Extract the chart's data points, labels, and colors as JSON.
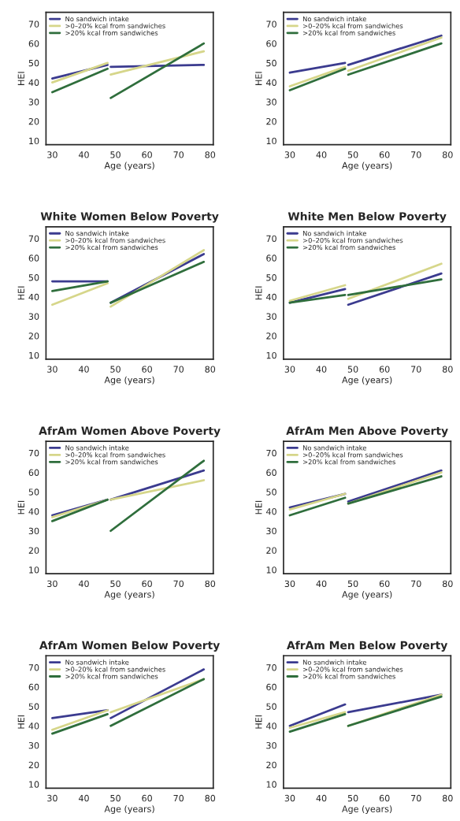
{
  "chart_data": [
    {
      "type": "line",
      "xlabel": "Age (years)",
      "ylabel": "HEI",
      "x": [
        30,
        47.5,
        48,
        48.5,
        78
      ],
      "xlim": [
        28,
        81
      ],
      "ylim": [
        8,
        76
      ],
      "xticks": [
        30,
        40,
        50,
        60,
        70,
        80
      ],
      "yticks": [
        10,
        20,
        30,
        40,
        50,
        60,
        70
      ],
      "legend": "top left",
      "series": [
        {
          "name": "No sandwich intake",
          "color": "#3b3b8f",
          "values": [
            42,
            49,
            null,
            48,
            49
          ]
        },
        {
          "name": ">0–20% kcal from sandwiches",
          "color": "#d6d68a",
          "values": [
            40,
            50,
            null,
            44,
            56
          ]
        },
        {
          "name": ">20% kcal from sandwiches",
          "color": "#2f6e3c",
          "values": [
            35,
            47,
            null,
            32,
            60
          ]
        }
      ]
    },
    {
      "type": "line",
      "xlabel": "Age (years)",
      "ylabel": "HEI",
      "x": [
        30,
        47.5,
        48,
        48.5,
        78
      ],
      "xlim": [
        28,
        81
      ],
      "ylim": [
        8,
        76
      ],
      "xticks": [
        30,
        40,
        50,
        60,
        70,
        80
      ],
      "yticks": [
        10,
        20,
        30,
        40,
        50,
        60,
        70
      ],
      "legend": "top left",
      "series": [
        {
          "name": "No sandwich intake",
          "color": "#3b3b8f",
          "values": [
            45,
            50,
            null,
            49,
            64
          ]
        },
        {
          "name": ">0–20% kcal from sandwiches",
          "color": "#d6d68a",
          "values": [
            38,
            48,
            null,
            46,
            63
          ]
        },
        {
          "name": ">20% kcal from sandwiches",
          "color": "#2f6e3c",
          "values": [
            36,
            47,
            null,
            44,
            60
          ]
        }
      ]
    },
    {
      "type": "line",
      "title": "White Women Below Poverty",
      "xlabel": "Age (years)",
      "ylabel": "HEI",
      "x": [
        30,
        47.5,
        48,
        48.5,
        78
      ],
      "xlim": [
        28,
        81
      ],
      "ylim": [
        8,
        76
      ],
      "xticks": [
        30,
        40,
        50,
        60,
        70,
        80
      ],
      "yticks": [
        10,
        20,
        30,
        40,
        50,
        60,
        70
      ],
      "legend": "top left",
      "series": [
        {
          "name": "No sandwich intake",
          "color": "#3b3b8f",
          "values": [
            48,
            48,
            null,
            37,
            62
          ]
        },
        {
          "name": ">0–20% kcal from sandwiches",
          "color": "#d6d68a",
          "values": [
            36,
            47,
            null,
            35,
            64
          ]
        },
        {
          "name": ">20% kcal from sandwiches",
          "color": "#2f6e3c",
          "values": [
            43,
            48,
            null,
            37,
            58
          ]
        }
      ]
    },
    {
      "type": "line",
      "title": "White Men Below Poverty",
      "xlabel": "Age (years)",
      "ylabel": "HEI",
      "x": [
        30,
        47.5,
        48,
        48.5,
        78
      ],
      "xlim": [
        28,
        81
      ],
      "ylim": [
        8,
        76
      ],
      "xticks": [
        30,
        40,
        50,
        60,
        70,
        80
      ],
      "yticks": [
        10,
        20,
        30,
        40,
        50,
        60,
        70
      ],
      "legend": "top left",
      "series": [
        {
          "name": "No sandwich intake",
          "color": "#3b3b8f",
          "values": [
            37,
            44,
            null,
            36,
            52
          ]
        },
        {
          "name": ">0–20% kcal from sandwiches",
          "color": "#d6d68a",
          "values": [
            38,
            46,
            null,
            39,
            57
          ]
        },
        {
          "name": ">20% kcal from sandwiches",
          "color": "#2f6e3c",
          "values": [
            37,
            41,
            null,
            41,
            49
          ]
        }
      ]
    },
    {
      "type": "line",
      "title": "AfrAm Women Above Poverty",
      "xlabel": "Age (years)",
      "ylabel": "HEI",
      "x": [
        30,
        47.5,
        48,
        48.5,
        78
      ],
      "xlim": [
        28,
        81
      ],
      "ylim": [
        8,
        76
      ],
      "xticks": [
        30,
        40,
        50,
        60,
        70,
        80
      ],
      "yticks": [
        10,
        20,
        30,
        40,
        50,
        60,
        70
      ],
      "legend": "top left",
      "series": [
        {
          "name": "No sandwich intake",
          "color": "#3b3b8f",
          "values": [
            38,
            46,
            null,
            46,
            61
          ]
        },
        {
          "name": ">0–20% kcal from sandwiches",
          "color": "#d6d68a",
          "values": [
            37,
            46,
            null,
            46,
            56
          ]
        },
        {
          "name": ">20% kcal from sandwiches",
          "color": "#2f6e3c",
          "values": [
            35,
            46,
            null,
            30,
            66
          ]
        }
      ]
    },
    {
      "type": "line",
      "title": "AfrAm Men Above Poverty",
      "xlabel": "Age (years)",
      "ylabel": "HEI",
      "x": [
        30,
        47.5,
        48,
        48.5,
        78
      ],
      "xlim": [
        28,
        81
      ],
      "ylim": [
        8,
        76
      ],
      "xticks": [
        30,
        40,
        50,
        60,
        70,
        80
      ],
      "yticks": [
        10,
        20,
        30,
        40,
        50,
        60,
        70
      ],
      "legend": "top left",
      "series": [
        {
          "name": "No sandwich intake",
          "color": "#3b3b8f",
          "values": [
            42,
            49,
            null,
            45,
            61
          ]
        },
        {
          "name": ">0–20% kcal from sandwiches",
          "color": "#d6d68a",
          "values": [
            41,
            49,
            null,
            44,
            60
          ]
        },
        {
          "name": ">20% kcal from sandwiches",
          "color": "#2f6e3c",
          "values": [
            38,
            47,
            null,
            44,
            58
          ]
        }
      ]
    },
    {
      "type": "line",
      "title": "AfrAm Women Below Poverty",
      "xlabel": "Age (years)",
      "ylabel": "HEI",
      "x": [
        30,
        47.5,
        48,
        48.5,
        78
      ],
      "xlim": [
        28,
        81
      ],
      "ylim": [
        8,
        76
      ],
      "xticks": [
        30,
        40,
        50,
        60,
        70,
        80
      ],
      "yticks": [
        10,
        20,
        30,
        40,
        50,
        60,
        70
      ],
      "legend": "top left",
      "series": [
        {
          "name": "No sandwich intake",
          "color": "#3b3b8f",
          "values": [
            44,
            48,
            null,
            44,
            69
          ]
        },
        {
          "name": ">0–20% kcal from sandwiches",
          "color": "#d6d68a",
          "values": [
            38,
            48,
            null,
            47,
            64
          ]
        },
        {
          "name": ">20% kcal from sandwiches",
          "color": "#2f6e3c",
          "values": [
            36,
            46,
            null,
            40,
            64
          ]
        }
      ]
    },
    {
      "type": "line",
      "title": "AfrAm Men Below Poverty",
      "xlabel": "Age (years)",
      "ylabel": "HEI",
      "x": [
        30,
        47.5,
        48,
        48.5,
        78
      ],
      "xlim": [
        28,
        81
      ],
      "ylim": [
        8,
        76
      ],
      "xticks": [
        30,
        40,
        50,
        60,
        70,
        80
      ],
      "yticks": [
        10,
        20,
        30,
        40,
        50,
        60,
        70
      ],
      "legend": "top left",
      "series": [
        {
          "name": "No sandwich intake",
          "color": "#3b3b8f",
          "values": [
            40,
            51,
            null,
            47,
            56
          ]
        },
        {
          "name": ">0–20% kcal from sandwiches",
          "color": "#d6d68a",
          "values": [
            39,
            47,
            null,
            40,
            56
          ]
        },
        {
          "name": ">20% kcal from sandwiches",
          "color": "#2f6e3c",
          "values": [
            37,
            46,
            null,
            40,
            55
          ]
        }
      ]
    }
  ]
}
